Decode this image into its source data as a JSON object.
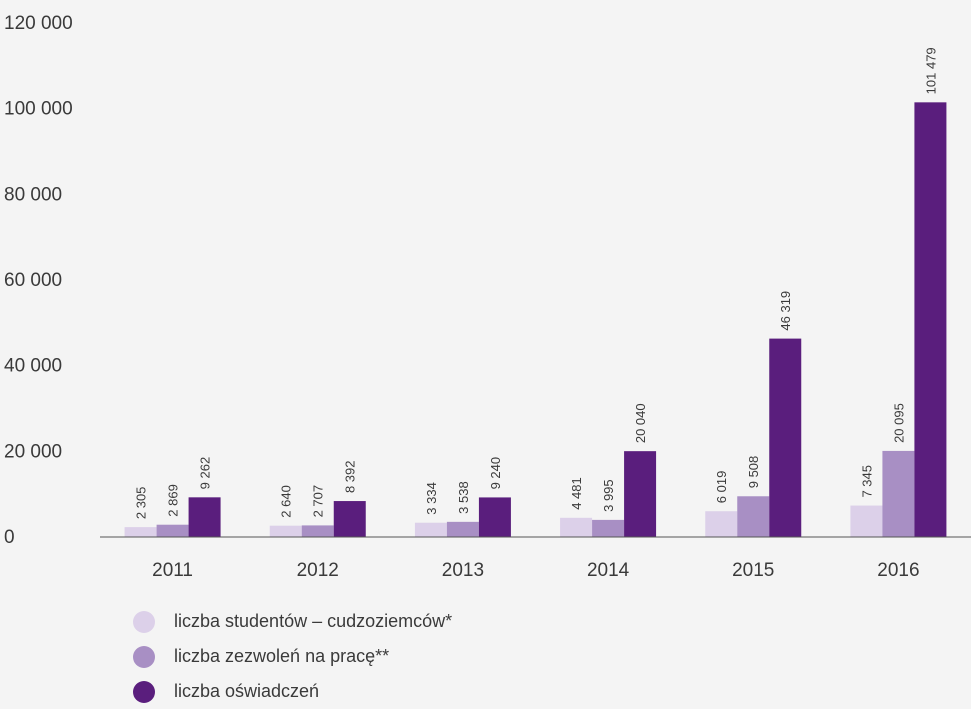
{
  "chart_data": {
    "type": "bar",
    "categories": [
      "2011",
      "2012",
      "2013",
      "2014",
      "2015",
      "2016"
    ],
    "series": [
      {
        "name": "liczba studentów – cudzoziemców*",
        "color": "#dcd0e9",
        "values": [
          2305,
          2640,
          3334,
          4481,
          6019,
          7345
        ],
        "labels": [
          "2 305",
          "2 640",
          "3 334",
          "4 481",
          "6 019",
          "7 345"
        ]
      },
      {
        "name": "liczba zezwoleń na pracę**",
        "color": "#a88fc4",
        "values": [
          2869,
          2707,
          3538,
          3995,
          9508,
          20095
        ],
        "labels": [
          "2 869",
          "2 707",
          "3 538",
          "3 995",
          "9 508",
          "20 095"
        ]
      },
      {
        "name": "liczba oświadczeń",
        "color": "#5a1e7d",
        "values": [
          9262,
          8392,
          9240,
          20040,
          46319,
          101479
        ],
        "labels": [
          "9 262",
          "8 392",
          "9 240",
          "20 040",
          "46 319",
          "101 479"
        ]
      }
    ],
    "yticks": [
      0,
      20000,
      40000,
      60000,
      80000,
      100000,
      120000
    ],
    "ytick_labels": [
      "0",
      "20 000",
      "40 000",
      "60 000",
      "80 000",
      "100 000",
      "120 000"
    ],
    "ylim": [
      0,
      120000
    ],
    "grid": false,
    "legend_position": "bottom-left"
  }
}
